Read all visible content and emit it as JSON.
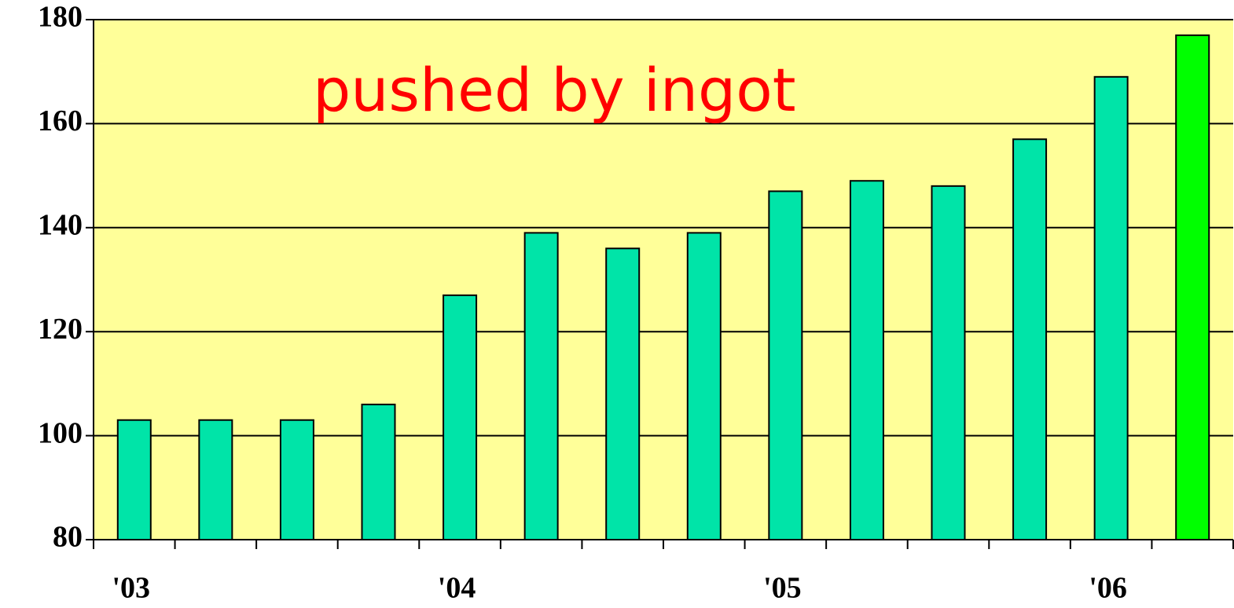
{
  "chart_data": {
    "type": "bar",
    "annotation": "pushed by ingot",
    "categories": [
      "'03",
      null,
      null,
      null,
      "'04",
      null,
      null,
      null,
      "'05",
      null,
      null,
      null,
      "'06",
      null
    ],
    "values": [
      103,
      103,
      103,
      106,
      127,
      139,
      136,
      139,
      147,
      149,
      148,
      157,
      169,
      177
    ],
    "colors": [
      "#00e4a8",
      "#00e4a8",
      "#00e4a8",
      "#00e4a8",
      "#00e4a8",
      "#00e4a8",
      "#00e4a8",
      "#00e4a8",
      "#00e4a8",
      "#00e4a8",
      "#00e4a8",
      "#00e4a8",
      "#00e4a8",
      "#00ff00"
    ],
    "background": "#ffff99",
    "ylim": [
      80,
      180
    ],
    "yticks": [
      80,
      100,
      120,
      140,
      160,
      180
    ],
    "grid": true
  }
}
